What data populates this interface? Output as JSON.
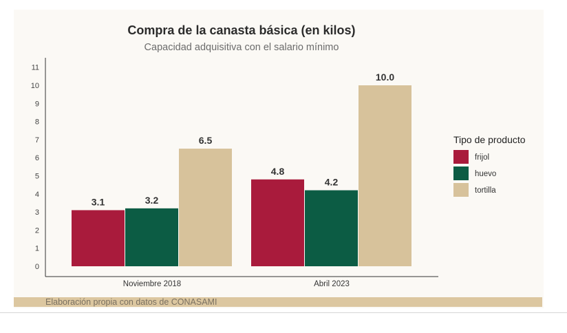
{
  "chart_data": {
    "type": "bar",
    "title": "Compra de la canasta básica (en kilos)",
    "subtitle": "Capacidad adquisitiva con el salario mínimo",
    "xlabel": "",
    "ylabel": "",
    "categories": [
      "Noviembre 2018",
      "Abril 2023"
    ],
    "series": [
      {
        "name": "frijol",
        "color": "#a91b3c",
        "values": [
          3.1,
          4.8
        ],
        "labels": [
          "3.1",
          "4.8"
        ]
      },
      {
        "name": "huevo",
        "color": "#0c5c44",
        "values": [
          3.2,
          4.2
        ],
        "labels": [
          "3.2",
          "4.2"
        ]
      },
      {
        "name": "tortilla",
        "color": "#d7c29b",
        "values": [
          6.5,
          10.0
        ],
        "labels": [
          "6.5",
          "10.0"
        ]
      }
    ],
    "ylim": [
      0,
      11
    ],
    "yticks": [
      0,
      1,
      2,
      3,
      4,
      5,
      6,
      7,
      8,
      9,
      10,
      11
    ],
    "grid": false,
    "legend_title": "Tipo de producto",
    "legend_position": "right",
    "source_note": "Elaboración propia con datos de CONASAMI",
    "source_band_color": "#dcc7a0"
  }
}
